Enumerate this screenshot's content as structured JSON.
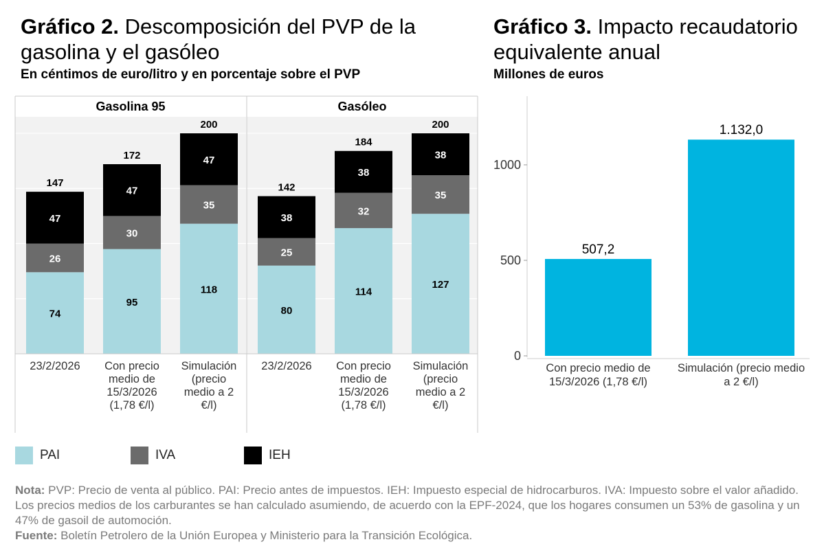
{
  "chart2": {
    "title_bold": "Gráfico 2.",
    "title_rest": " Descomposición del PVP de la gasolina y el gasóleo",
    "subtitle": "En céntimos de euro/litro y en porcentaje sobre el PVP"
  },
  "chart3": {
    "title_bold": "Gráfico 3.",
    "title_rest": " Impacto recaudatorio equivalente anual",
    "subtitle": "Millones de euros"
  },
  "colors": {
    "PAI": "#a8d8e0",
    "IVA": "#6b6b6b",
    "IEH": "#000000",
    "bar3": "#00b4e0"
  },
  "legend": [
    {
      "key": "PAI",
      "label": "PAI"
    },
    {
      "key": "IVA",
      "label": "IVA"
    },
    {
      "key": "IEH",
      "label": "IEH"
    }
  ],
  "note": {
    "label": "Nota:",
    "text": " PVP: Precio de venta al público. PAI: Precio antes de impuestos. IEH: Impuesto especial de hidrocarburos. IVA: Impuesto sobre el valor añadido. Los precios medios de los carburantes se han calculado asumiendo, de acuerdo con la EPF-2024, que los hogares consumen un 53% de gasolina y un 47% de gasoil de automoción."
  },
  "source": {
    "label": "Fuente:",
    "text": " Boletín Petrolero de la Unión Europea y Ministerio para la Transición Ecológica."
  },
  "chart_data": [
    {
      "type": "bar",
      "stacked": true,
      "panels": [
        {
          "name": "Gasolina 95",
          "categories": [
            [
              "23/2/2026"
            ],
            [
              "Con precio",
              "medio de",
              "15/3/2026",
              "(1,78 €/l)"
            ],
            [
              "Simulación",
              "(precio",
              "medio a 2",
              "€/l)"
            ]
          ],
          "series": [
            {
              "key": "PAI",
              "values": [
                74,
                95,
                118
              ]
            },
            {
              "key": "IVA",
              "values": [
                26,
                30,
                35
              ]
            },
            {
              "key": "IEH",
              "values": [
                47,
                47,
                47
              ]
            }
          ],
          "totals": [
            147,
            172,
            200
          ]
        },
        {
          "name": "Gasóleo",
          "categories": [
            [
              "23/2/2026"
            ],
            [
              "Con precio",
              "medio de",
              "15/3/2026",
              "(1,78 €/l)"
            ],
            [
              "Simulación",
              "(precio",
              "medio a 2",
              "€/l)"
            ]
          ],
          "series": [
            {
              "key": "PAI",
              "values": [
                80,
                114,
                127
              ]
            },
            {
              "key": "IVA",
              "values": [
                25,
                32,
                35
              ]
            },
            {
              "key": "IEH",
              "values": [
                38,
                38,
                38
              ]
            }
          ],
          "totals": [
            142,
            184,
            200
          ]
        }
      ],
      "ylim": [
        0,
        215
      ],
      "grid": true,
      "legend_position": "bottom-left"
    },
    {
      "type": "bar",
      "categories": [
        [
          "Con precio medio de",
          "15/3/2026 (1,78 €/l)"
        ],
        [
          "Simulación (precio medio",
          "a 2 €/l)"
        ]
      ],
      "values": [
        507.2,
        1132.0
      ],
      "value_labels": [
        "507,2",
        "1.132,0"
      ],
      "yticks": [
        0,
        500,
        1000
      ],
      "ytick_labels": [
        "0",
        "500",
        "1000"
      ],
      "ylim": [
        0,
        1230
      ]
    }
  ]
}
